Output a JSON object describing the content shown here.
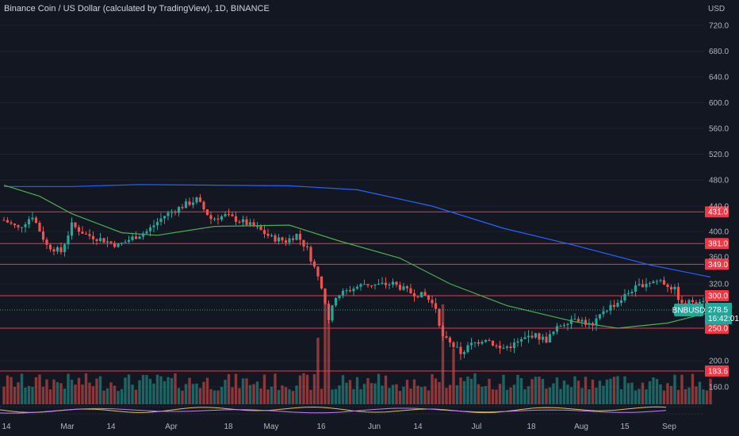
{
  "header": {
    "title": "Binance Coin / US Dollar (calculated by TradingView), 1D, BINANCE",
    "currency": "USD"
  },
  "colors": {
    "background": "#131722",
    "up": "#26a69a",
    "down": "#ef5350",
    "ma_long": "#2962ff",
    "ma_short": "#4caf50",
    "level_line": "#f23645",
    "price_tag": "#26a69a",
    "grid": "#1e222d"
  },
  "ticker": {
    "symbol": "BNBUSD",
    "price": "278.5",
    "countdown": "16:42:01"
  },
  "chart_data": {
    "type": "candlestick",
    "title": "Binance Coin / US Dollar (calculated by TradingView), 1D, BINANCE",
    "ylabel": "USD",
    "ylim": [
      150,
      740
    ],
    "y_ticks": [
      "720.0",
      "680.0",
      "640.0",
      "600.0",
      "560.0",
      "520.0",
      "480.0",
      "440.0",
      "400.0",
      "360.0",
      "320.0",
      "200.0",
      "160.0"
    ],
    "x_ticks": [
      "14",
      "Mar",
      "14",
      "Apr",
      "18",
      "May",
      "16",
      "Jun",
      "14",
      "Jul",
      "18",
      "Aug",
      "15",
      "Sep"
    ],
    "x_range": [
      "2022-02-10",
      "2022-09-01"
    ],
    "last_date": "2022-08-27",
    "levels": [
      431.0,
      381.0,
      349.0,
      300.0,
      250.0,
      183.6
    ],
    "level_labels": [
      "431.0",
      "381.0",
      "349.0",
      "300.0",
      "250.0",
      "183.6"
    ],
    "close_path": [
      [
        "2022-02-10",
        418
      ],
      [
        "2022-02-14",
        405
      ],
      [
        "2022-02-18",
        425
      ],
      [
        "2022-02-22",
        378
      ],
      [
        "2022-02-26",
        368
      ],
      [
        "2022-03-01",
        410
      ],
      [
        "2022-03-05",
        395
      ],
      [
        "2022-03-09",
        388
      ],
      [
        "2022-03-14",
        378
      ],
      [
        "2022-03-18",
        390
      ],
      [
        "2022-03-22",
        400
      ],
      [
        "2022-03-27",
        425
      ],
      [
        "2022-04-01",
        440
      ],
      [
        "2022-04-05",
        450
      ],
      [
        "2022-04-09",
        420
      ],
      [
        "2022-04-13",
        425
      ],
      [
        "2022-04-18",
        415
      ],
      [
        "2022-04-22",
        405
      ],
      [
        "2022-04-26",
        390
      ],
      [
        "2022-04-30",
        385
      ],
      [
        "2022-05-03",
        395
      ],
      [
        "2022-05-06",
        372
      ],
      [
        "2022-05-09",
        330
      ],
      [
        "2022-05-11",
        290
      ],
      [
        "2022-05-12",
        262
      ],
      [
        "2022-05-14",
        300
      ],
      [
        "2022-05-18",
        310
      ],
      [
        "2022-05-22",
        320
      ],
      [
        "2022-05-26",
        318
      ],
      [
        "2022-05-30",
        320
      ],
      [
        "2022-06-04",
        305
      ],
      [
        "2022-06-08",
        300
      ],
      [
        "2022-06-11",
        282
      ],
      [
        "2022-06-13",
        235
      ],
      [
        "2022-06-16",
        222
      ],
      [
        "2022-06-18",
        212
      ],
      [
        "2022-06-21",
        225
      ],
      [
        "2022-06-25",
        235
      ],
      [
        "2022-06-29",
        218
      ],
      [
        "2022-07-03",
        225
      ],
      [
        "2022-07-08",
        240
      ],
      [
        "2022-07-12",
        232
      ],
      [
        "2022-07-16",
        255
      ],
      [
        "2022-07-20",
        268
      ],
      [
        "2022-07-25",
        252
      ],
      [
        "2022-07-28",
        278
      ],
      [
        "2022-08-01",
        290
      ],
      [
        "2022-08-05",
        310
      ],
      [
        "2022-08-09",
        322
      ],
      [
        "2022-08-13",
        325
      ],
      [
        "2022-08-17",
        310
      ],
      [
        "2022-08-19",
        285
      ],
      [
        "2022-08-22",
        292
      ],
      [
        "2022-08-25",
        295
      ],
      [
        "2022-08-27",
        278.5
      ]
    ],
    "ma_long": [
      [
        "2022-02-10",
        470
      ],
      [
        "2022-03-01",
        470
      ],
      [
        "2022-03-20",
        473
      ],
      [
        "2022-04-10",
        472
      ],
      [
        "2022-05-01",
        471
      ],
      [
        "2022-05-20",
        465
      ],
      [
        "2022-06-10",
        440
      ],
      [
        "2022-06-30",
        405
      ],
      [
        "2022-07-20",
        378
      ],
      [
        "2022-08-10",
        348
      ],
      [
        "2022-08-27",
        330
      ]
    ],
    "ma_short": [
      [
        "2022-02-10",
        472
      ],
      [
        "2022-02-20",
        455
      ],
      [
        "2022-03-01",
        428
      ],
      [
        "2022-03-15",
        398
      ],
      [
        "2022-03-25",
        394
      ],
      [
        "2022-04-10",
        408
      ],
      [
        "2022-05-01",
        410
      ],
      [
        "2022-05-15",
        385
      ],
      [
        "2022-06-01",
        358
      ],
      [
        "2022-06-15",
        320
      ],
      [
        "2022-07-01",
        285
      ],
      [
        "2022-07-20",
        260
      ],
      [
        "2022-08-01",
        250
      ],
      [
        "2022-08-15",
        258
      ],
      [
        "2022-08-27",
        275
      ]
    ],
    "volume_spikes": [
      [
        "2022-05-09",
        0.6
      ],
      [
        "2022-05-11",
        1.0
      ],
      [
        "2022-05-12",
        0.75
      ],
      [
        "2022-06-13",
        0.9
      ],
      [
        "2022-06-16",
        0.5
      ]
    ]
  }
}
